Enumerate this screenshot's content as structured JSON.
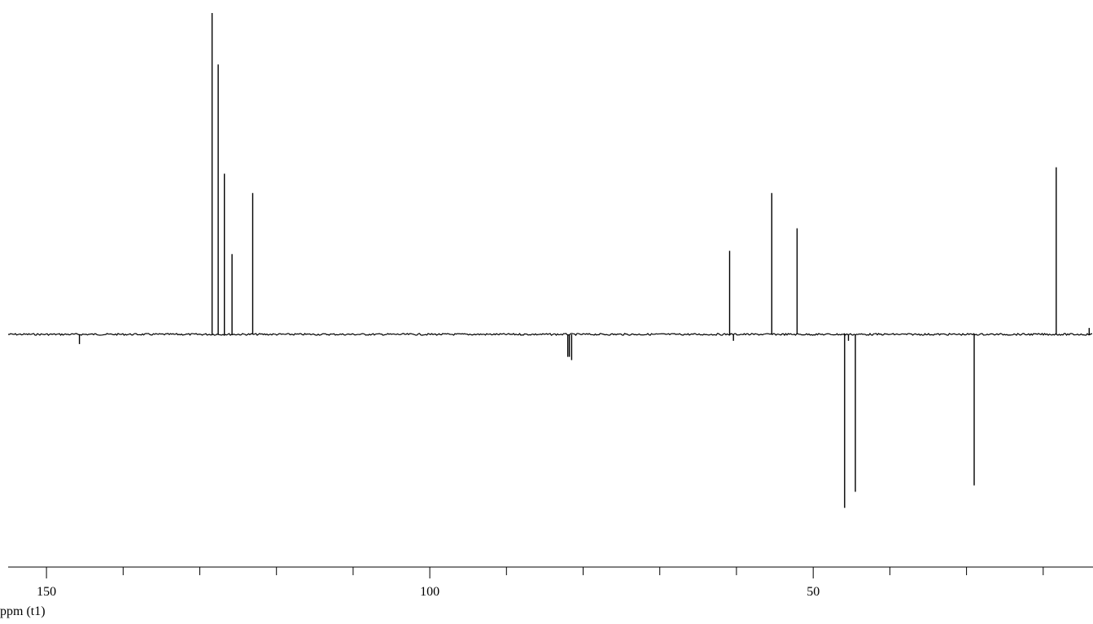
{
  "chart_data": {
    "type": "line",
    "subtype": "nmr-spectrum-dept",
    "title": "",
    "xlabel": "ppm (t1)",
    "ylabel": "",
    "x_reversed": true,
    "xlim": [
      155,
      13.5
    ],
    "ylim": [
      -1.0,
      1.0
    ],
    "grid": false,
    "legend": "none",
    "major_ticks": [
      150,
      100,
      50
    ],
    "minor_ticks": [
      140,
      130,
      120,
      110,
      90,
      80,
      70,
      60,
      40,
      30,
      20
    ],
    "colors": {
      "trace": "#000000",
      "background": "#ffffff"
    },
    "peaks": [
      {
        "ppm": 145.7,
        "intensity": -0.03
      },
      {
        "ppm": 128.4,
        "intensity": 1.0
      },
      {
        "ppm": 127.6,
        "intensity": 0.84
      },
      {
        "ppm": 126.8,
        "intensity": 0.5
      },
      {
        "ppm": 125.8,
        "intensity": 0.25
      },
      {
        "ppm": 123.1,
        "intensity": 0.44
      },
      {
        "ppm": 82.0,
        "intensity": -0.07
      },
      {
        "ppm": 81.8,
        "intensity": -0.07
      },
      {
        "ppm": 81.5,
        "intensity": -0.08
      },
      {
        "ppm": 60.9,
        "intensity": 0.26
      },
      {
        "ppm": 60.4,
        "intensity": -0.02
      },
      {
        "ppm": 55.4,
        "intensity": 0.44
      },
      {
        "ppm": 52.1,
        "intensity": 0.33
      },
      {
        "ppm": 45.9,
        "intensity": -0.54
      },
      {
        "ppm": 45.4,
        "intensity": -0.02
      },
      {
        "ppm": 44.5,
        "intensity": -0.49
      },
      {
        "ppm": 29.0,
        "intensity": -0.47
      },
      {
        "ppm": 18.3,
        "intensity": 0.52
      },
      {
        "ppm": 14.0,
        "intensity": 0.02
      }
    ]
  }
}
